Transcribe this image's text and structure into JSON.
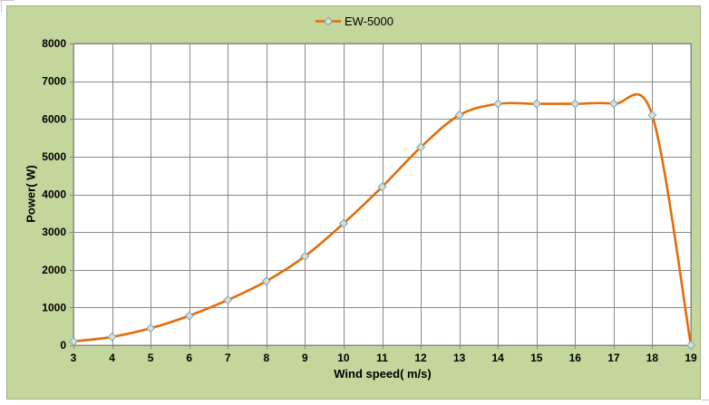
{
  "chart": {
    "background": "#c3d69b",
    "plot_background": "#ffffff",
    "grid_color": "#898989",
    "line_color": "#e46c0a",
    "marker_fill": "#d9e3c4",
    "marker_stroke": "#84a7cc",
    "text_color": "#000000"
  },
  "legend": {
    "label": "EW-5000"
  },
  "chart_data": {
    "type": "line",
    "title": "",
    "x": [
      3,
      4,
      5,
      6,
      7,
      8,
      9,
      10,
      11,
      12,
      13,
      14,
      15,
      16,
      17,
      18,
      19
    ],
    "series": [
      {
        "name": "EW-5000",
        "values": [
          100,
          220,
          450,
          780,
          1200,
          1700,
          2360,
          3230,
          4200,
          5250,
          6100,
          6400,
          6400,
          6400,
          6400,
          6100,
          0
        ]
      }
    ],
    "xlabel": "Wind speed( m/s)",
    "ylabel": "Power( W)",
    "xlim": [
      3,
      19
    ],
    "ylim": [
      0,
      8000
    ],
    "xtick_step": 1,
    "ytick_step": 1000,
    "grid": true,
    "smooth": true,
    "marker": "diamond",
    "legend_position": "top-center"
  }
}
